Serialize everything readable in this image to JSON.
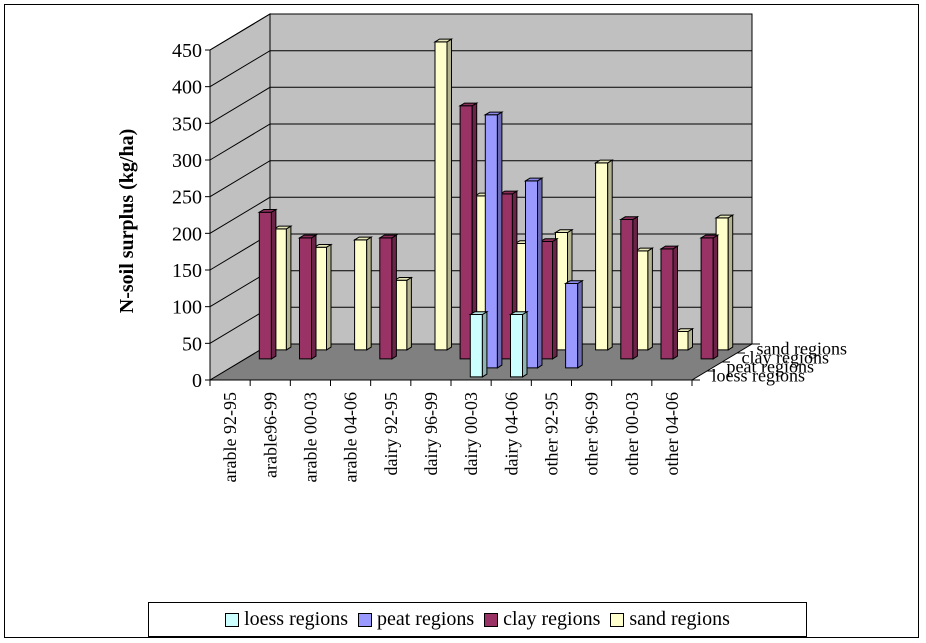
{
  "chart_data": {
    "type": "bar",
    "ylabel": "N-soil surplus (kg/ha)",
    "ylim": [
      0,
      450
    ],
    "yticks": [
      "0",
      "50",
      "100",
      "150",
      "200",
      "250",
      "300",
      "350",
      "400",
      "450"
    ],
    "grid": true,
    "legend_position": "bottom",
    "categories": [
      "arable 92-95",
      "arable96-99",
      "arable 00-03",
      "arable 04-06",
      "dairy 92-95",
      "dairy 96-99",
      "dairy 00-03",
      "dairy 04-06",
      "other 92-95",
      "other 96-99",
      "other 00-03",
      "other 04-06"
    ],
    "depth_labels": [
      "loess regions",
      "peat regions",
      "clay regions",
      "sand regions"
    ],
    "series": [
      {
        "name": "loess regions",
        "color": "#ccffff",
        "values": [
          null,
          null,
          null,
          null,
          null,
          null,
          85,
          85,
          null,
          null,
          null,
          null
        ]
      },
      {
        "name": "peat regions",
        "color": "#9999ff",
        "values": [
          null,
          null,
          null,
          null,
          null,
          null,
          345,
          255,
          115,
          null,
          null,
          null
        ]
      },
      {
        "name": "clay regions",
        "color": "#993366",
        "values": [
          200,
          165,
          null,
          165,
          null,
          345,
          225,
          160,
          null,
          190,
          150,
          165
        ]
      },
      {
        "name": "sand regions",
        "color": "#ffffcc",
        "values": [
          165,
          140,
          150,
          95,
          420,
          210,
          145,
          160,
          255,
          135,
          25,
          180
        ]
      }
    ]
  }
}
